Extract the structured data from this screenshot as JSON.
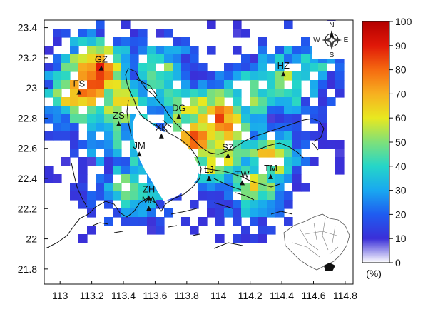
{
  "map": {
    "x_ticks": [
      "113",
      "113.2",
      "113.4",
      "113.6",
      "113.8",
      "114",
      "114.2",
      "114.4",
      "114.6",
      "114.8"
    ],
    "y_ticks": [
      "23.4",
      "23.2",
      "23",
      "22.8",
      "22.6",
      "22.4",
      "22.2",
      "22",
      "21.8"
    ],
    "cities": [
      {
        "code": "GZ",
        "lon": 113.26,
        "lat": 23.13
      },
      {
        "code": "FS",
        "lon": 113.12,
        "lat": 22.97
      },
      {
        "code": "ZS",
        "lon": 113.37,
        "lat": 22.76
      },
      {
        "code": "DG",
        "lon": 113.75,
        "lat": 22.81
      },
      {
        "code": "XK",
        "lon": 113.64,
        "lat": 22.68
      },
      {
        "code": "HZ",
        "lon": 114.41,
        "lat": 23.09
      },
      {
        "code": "SZ",
        "lon": 114.06,
        "lat": 22.55
      },
      {
        "code": "JM",
        "lon": 113.5,
        "lat": 22.56
      },
      {
        "code": "LJ",
        "lon": 113.94,
        "lat": 22.4
      },
      {
        "code": "TW",
        "lon": 114.15,
        "lat": 22.37
      },
      {
        "code": "TM",
        "lon": 114.33,
        "lat": 22.41
      },
      {
        "code": "ZH",
        "lon": 113.56,
        "lat": 22.27
      },
      {
        "code": "MA",
        "lon": 113.56,
        "lat": 22.2
      }
    ],
    "compass": {
      "n": "N",
      "s": "S",
      "e": "E",
      "w": "W"
    }
  },
  "colorbar": {
    "ticks": [
      "100",
      "90",
      "80",
      "70",
      "60",
      "50",
      "40",
      "30",
      "20",
      "10",
      "0"
    ],
    "unit": "(%)",
    "min": 0,
    "max": 100
  },
  "colors": {
    "high": "#b40000",
    "mid": "#e8e820",
    "low": "#1a2fd8",
    "zero": "#ffffff"
  }
}
